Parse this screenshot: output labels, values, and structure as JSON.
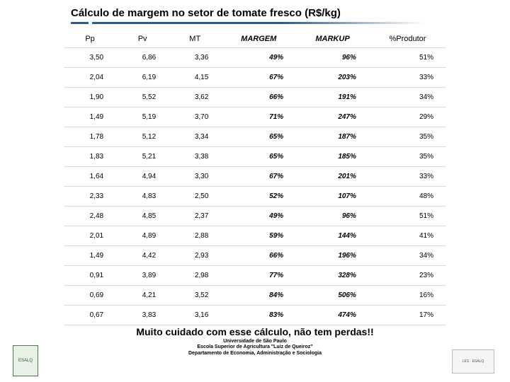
{
  "title": "Cálculo de margem no setor de tomate fresco (R$/kg)",
  "columns": [
    {
      "label": "Pp",
      "bold_italic": false
    },
    {
      "label": "Pv",
      "bold_italic": false
    },
    {
      "label": "MT",
      "bold_italic": false
    },
    {
      "label": "MARGEM",
      "bold_italic": true
    },
    {
      "label": "MARKUP",
      "bold_italic": true
    },
    {
      "label": "%Produtor",
      "bold_italic": false
    }
  ],
  "rows": [
    [
      "3,50",
      "6,86",
      "3,36",
      "49%",
      "96%",
      "51%"
    ],
    [
      "2,04",
      "6,19",
      "4,15",
      "67%",
      "203%",
      "33%"
    ],
    [
      "1,90",
      "5,52",
      "3,62",
      "66%",
      "191%",
      "34%"
    ],
    [
      "1,49",
      "5,19",
      "3,70",
      "71%",
      "247%",
      "29%"
    ],
    [
      "1,78",
      "5,12",
      "3,34",
      "65%",
      "187%",
      "35%"
    ],
    [
      "1,83",
      "5,21",
      "3,38",
      "65%",
      "185%",
      "35%"
    ],
    [
      "1,64",
      "4,94",
      "3,30",
      "67%",
      "201%",
      "33%"
    ],
    [
      "2,33",
      "4,83",
      "2,50",
      "52%",
      "107%",
      "48%"
    ],
    [
      "2,48",
      "4,85",
      "2,37",
      "49%",
      "96%",
      "51%"
    ],
    [
      "2,01",
      "4,89",
      "2,88",
      "59%",
      "144%",
      "41%"
    ],
    [
      "1,49",
      "4,42",
      "2,93",
      "66%",
      "196%",
      "34%"
    ],
    [
      "0,91",
      "3,89",
      "2,98",
      "77%",
      "328%",
      "23%"
    ],
    [
      "0,69",
      "4,21",
      "3,52",
      "84%",
      "506%",
      "16%"
    ],
    [
      "0,67",
      "3,83",
      "3,16",
      "83%",
      "474%",
      "17%"
    ]
  ],
  "bold_italic_cols": [
    3,
    4
  ],
  "warning": "Muito cuidado com esse cálculo, não tem perdas!!",
  "footer": {
    "line1": "Universidade de São Paulo",
    "line2": "Escola Superior de Agricultura \"Luiz de Queiroz\"",
    "line3": "Departamento de Economia, Administração e Sociologia"
  },
  "logo_left": "ESALQ",
  "logo_right": "LES · ESALQ",
  "colors": {
    "underline": "#2e5c8a",
    "row_border": "#d9d9d9"
  }
}
